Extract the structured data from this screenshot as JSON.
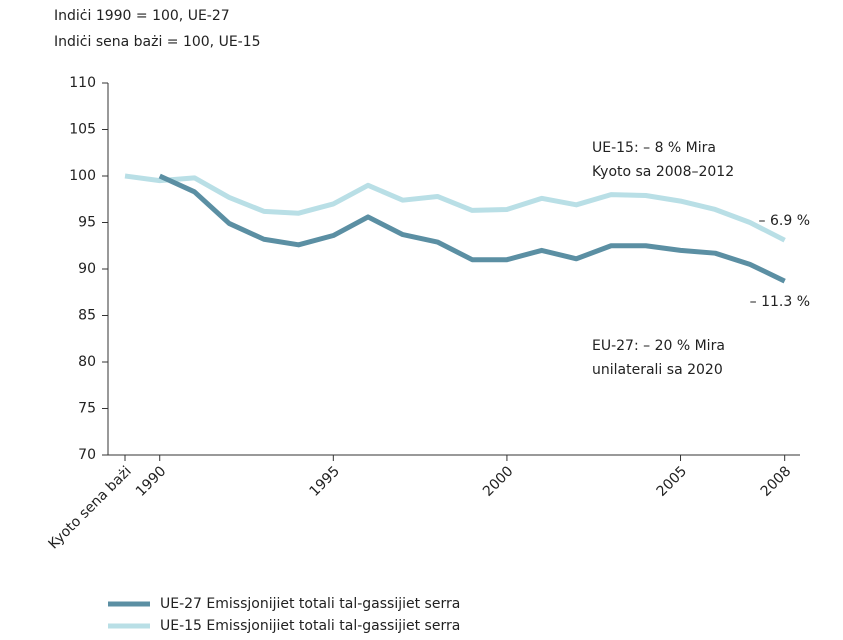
{
  "chart_data": {
    "type": "line",
    "subtitle_lines": [
      "Indiċi 1990 = 100, UE-27",
      "Indiċi sena bażi = 100, UE-15"
    ],
    "categories": [
      "Kyoto sena bażi",
      "1990",
      null,
      null,
      null,
      null,
      "1995",
      null,
      null,
      null,
      null,
      "2000",
      null,
      null,
      null,
      null,
      "2005",
      null,
      null,
      "2008"
    ],
    "series": [
      {
        "name": "UE-27 Emissjonijiet totali tal-gassijiet serra",
        "color": "#5b8fa3",
        "values": [
          null,
          100,
          98.3,
          94.9,
          93.2,
          92.6,
          93.6,
          95.6,
          93.7,
          92.9,
          91.0,
          91.0,
          92.0,
          91.1,
          92.5,
          92.5,
          92.0,
          91.7,
          90.5,
          88.7
        ]
      },
      {
        "name": "UE-15 Emissjonijiet totali tal-gassijiet serra",
        "color": "#b9dfe6",
        "values": [
          100,
          99.5,
          99.8,
          97.7,
          96.2,
          96.0,
          97.0,
          99.0,
          97.4,
          97.8,
          96.3,
          96.4,
          97.6,
          96.9,
          98.0,
          97.9,
          97.3,
          96.4,
          95.0,
          93.1
        ]
      }
    ],
    "annotations": [
      "UE-15: – 8 % Mira",
      "Kyoto sa 2008–2012",
      "– 6.9 %",
      "– 11.3 %",
      "EU-27: – 20 % Mira",
      "unilaterali sa 2020"
    ],
    "ylim": [
      70,
      110
    ],
    "yticks": [
      70,
      75,
      80,
      85,
      90,
      95,
      100,
      105,
      110
    ]
  }
}
